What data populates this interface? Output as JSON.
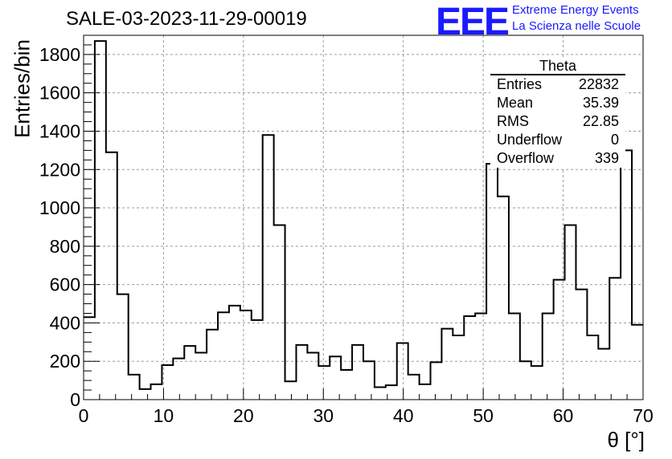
{
  "title": "SALE-03-2023-11-29-00019",
  "logo": {
    "text": "EEE",
    "line1": "Extreme Energy Events",
    "line2": "La Scienza nelle Scuole",
    "color": "#1a1aff"
  },
  "stats": {
    "title": "Theta",
    "rows": [
      {
        "label": "Entries",
        "value": "22832"
      },
      {
        "label": "Mean",
        "value": "35.39"
      },
      {
        "label": "RMS",
        "value": "22.85"
      },
      {
        "label": "Underflow",
        "value": "0"
      },
      {
        "label": "Overflow",
        "value": "339"
      }
    ]
  },
  "chart_data": {
    "type": "bar",
    "histogram": true,
    "xlabel": "θ [°]",
    "ylabel": "Entries/bin",
    "xlim": [
      0,
      70
    ],
    "ylim": [
      0,
      1900
    ],
    "xticks": [
      0,
      10,
      20,
      30,
      40,
      50,
      60,
      70
    ],
    "yticks": [
      0,
      200,
      400,
      600,
      800,
      1000,
      1200,
      1400,
      1600,
      1800
    ],
    "grid": true,
    "bin_edges": [
      0,
      1.4,
      2.8,
      4.2,
      5.6,
      7.0,
      8.4,
      9.8,
      11.2,
      12.6,
      14.0,
      15.4,
      16.8,
      18.2,
      19.6,
      21.0,
      22.4,
      23.8,
      25.2,
      26.6,
      28.0,
      29.4,
      30.8,
      32.2,
      33.6,
      35.0,
      36.4,
      37.8,
      39.2,
      40.6,
      42.0,
      43.4,
      44.8,
      46.2,
      47.6,
      49.0,
      50.4,
      51.8,
      53.2,
      54.6,
      56.0,
      57.4,
      58.8,
      60.2,
      61.6,
      63.0,
      64.4,
      65.8,
      67.2,
      68.6,
      70.0
    ],
    "values": [
      430,
      1870,
      1290,
      550,
      130,
      55,
      80,
      180,
      215,
      280,
      245,
      365,
      455,
      490,
      465,
      415,
      1380,
      910,
      95,
      285,
      245,
      175,
      225,
      155,
      285,
      200,
      65,
      75,
      295,
      130,
      80,
      195,
      370,
      335,
      435,
      450,
      1230,
      1060,
      450,
      200,
      175,
      450,
      625,
      910,
      575,
      335,
      265,
      635,
      1300,
      390
    ],
    "line_color": "#000000"
  }
}
